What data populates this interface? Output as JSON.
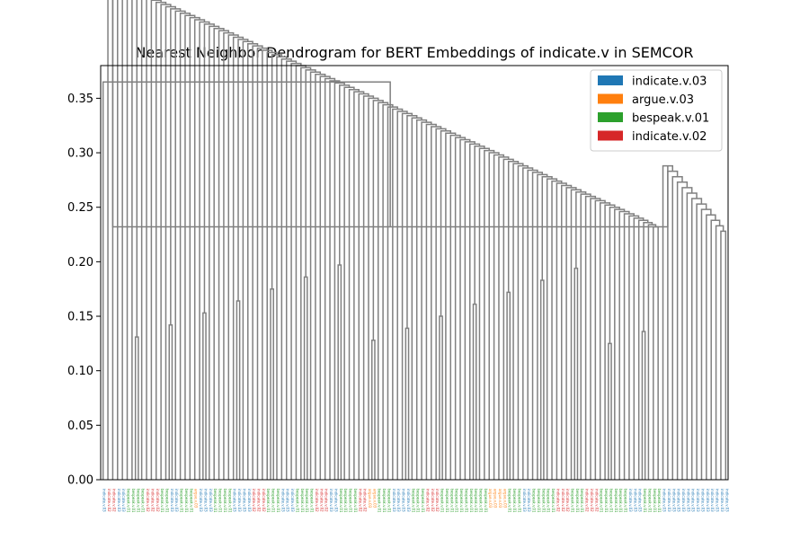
{
  "chart_data": {
    "type": "dendrogram",
    "title": "Nearest Neighbor Dendrogram for BERT Embeddings of indicate.v in SEMCOR",
    "xlabel": "",
    "ylabel": "",
    "ylim": [
      0,
      0.38
    ],
    "yticks": [
      0.0,
      0.05,
      0.1,
      0.15,
      0.2,
      0.25,
      0.3,
      0.35
    ],
    "ytick_labels": [
      "0.00",
      "0.05",
      "0.10",
      "0.15",
      "0.20",
      "0.25",
      "0.30",
      "0.35"
    ],
    "grid": false,
    "link_color": "#808080",
    "legend_position": "top-right",
    "legend": [
      {
        "label": "indicate.v.03",
        "color": "#1f77b4"
      },
      {
        "label": "argue.v.03",
        "color": "#ff7f0e"
      },
      {
        "label": "bespeak.v.01",
        "color": "#2ca02c"
      },
      {
        "label": "indicate.v.02",
        "color": "#d62728"
      }
    ],
    "merges": [
      {
        "left": 0,
        "right": 0,
        "height": 0.255
      },
      {
        "left": 0,
        "right": 1,
        "height": 0.365
      },
      {
        "left": 1,
        "right": 2,
        "height": 0.348
      },
      {
        "left": 2,
        "right": 3,
        "height": 0.332
      },
      {
        "left": 3,
        "right": 4,
        "height": 0.318
      },
      {
        "left": 4,
        "right": 5,
        "height": 0.313
      },
      {
        "left": 5,
        "right": 6,
        "height": 0.306
      },
      {
        "left": 6,
        "right": 7,
        "height": 0.3
      },
      {
        "left": 8,
        "right": 9,
        "height": 0.267
      },
      {
        "left": 10,
        "right": 11,
        "height": 0.265
      },
      {
        "left": 11,
        "right": 12,
        "height": 0.262
      },
      {
        "left": 13,
        "right": 14,
        "height": 0.247
      },
      {
        "left": 15,
        "right": 16,
        "height": 0.18
      },
      {
        "left": 17,
        "right": 18,
        "height": 0.227
      },
      {
        "left": 19,
        "right": 20,
        "height": 0.224
      },
      {
        "left": 21,
        "right": 22,
        "height": 0.199
      },
      {
        "left": 23,
        "right": 24,
        "height": 0.19
      },
      {
        "left": 25,
        "right": 26,
        "height": 0.169
      },
      {
        "left": 27,
        "right": 28,
        "height": 0.124
      },
      {
        "left": 29,
        "right": 30,
        "height": 0.22
      },
      {
        "left": 31,
        "right": 32,
        "height": 0.199
      },
      {
        "left": 33,
        "right": 34,
        "height": 0.192
      },
      {
        "left": 35,
        "right": 36,
        "height": 0.174
      },
      {
        "left": 37,
        "right": 38,
        "height": 0.24
      },
      {
        "left": 39,
        "right": 40,
        "height": 0.23
      },
      {
        "left": 41,
        "right": 42,
        "height": 0.199
      },
      {
        "left": 43,
        "right": 44,
        "height": 0.298
      },
      {
        "left": 45,
        "right": 46,
        "height": 0.296
      },
      {
        "left": 47,
        "right": 48,
        "height": 0.29
      },
      {
        "left": 49,
        "right": 50,
        "height": 0.287
      },
      {
        "left": 51,
        "right": 52,
        "height": 0.285
      },
      {
        "left": 53,
        "right": 54,
        "height": 0.283
      },
      {
        "left": 55,
        "right": 56,
        "height": 0.28
      },
      {
        "left": 57,
        "right": 58,
        "height": 0.274
      },
      {
        "left": 59,
        "right": 60,
        "height": 0.27
      },
      {
        "left": 61,
        "right": 62,
        "height": 0.266
      },
      {
        "left": 63,
        "right": 64,
        "height": 0.26
      },
      {
        "left": 65,
        "right": 66,
        "height": 0.256
      },
      {
        "left": 67,
        "right": 68,
        "height": 0.25
      },
      {
        "left": 69,
        "right": 70,
        "height": 0.246
      },
      {
        "left": 71,
        "right": 72,
        "height": 0.243
      },
      {
        "left": 73,
        "right": 74,
        "height": 0.24
      },
      {
        "left": 75,
        "right": 76,
        "height": 0.237
      },
      {
        "left": 77,
        "right": 78,
        "height": 0.234
      },
      {
        "left": 79,
        "right": 80,
        "height": 0.23
      },
      {
        "left": 81,
        "right": 82,
        "height": 0.225
      },
      {
        "left": 83,
        "right": 84,
        "height": 0.222
      },
      {
        "left": 85,
        "right": 86,
        "height": 0.218
      },
      {
        "left": 87,
        "right": 88,
        "height": 0.2
      },
      {
        "left": 89,
        "right": 90,
        "height": 0.198
      },
      {
        "left": 91,
        "right": 92,
        "height": 0.197
      },
      {
        "left": 93,
        "right": 94,
        "height": 0.195
      },
      {
        "left": 95,
        "right": 96,
        "height": 0.19
      },
      {
        "left": 97,
        "right": 98,
        "height": 0.182
      },
      {
        "left": 99,
        "right": 100,
        "height": 0.176
      },
      {
        "left": 101,
        "right": 102,
        "height": 0.171
      },
      {
        "left": 103,
        "right": 104,
        "height": 0.166
      },
      {
        "left": 105,
        "right": 106,
        "height": 0.163
      },
      {
        "left": 107,
        "right": 108,
        "height": 0.16
      },
      {
        "left": 109,
        "right": 110,
        "height": 0.15
      },
      {
        "left": 111,
        "right": 112,
        "height": 0.232
      },
      {
        "left": 113,
        "right": 114,
        "height": 0.228
      }
    ],
    "leaf_count": 130,
    "leaf_classes": [
      0,
      3,
      3,
      0,
      0,
      2,
      2,
      2,
      2,
      3,
      3,
      3,
      2,
      2,
      0,
      0,
      2,
      2,
      2,
      1,
      0,
      0,
      0,
      2,
      2,
      2,
      2,
      0,
      0,
      0,
      0,
      3,
      3,
      3,
      2,
      2,
      2,
      0,
      0,
      0,
      2,
      2,
      2,
      2,
      3,
      3,
      3,
      0,
      0,
      2,
      2,
      2,
      2,
      3,
      3,
      1,
      1,
      2,
      2,
      2,
      0,
      0,
      0,
      0,
      2,
      2,
      2,
      3,
      3,
      3,
      2,
      2,
      2,
      2,
      2,
      2,
      2,
      2,
      2,
      2,
      1,
      1,
      1,
      1,
      2,
      2,
      2,
      0,
      0,
      2,
      2,
      2,
      2,
      2,
      3,
      3,
      3,
      2,
      2,
      2,
      3,
      3,
      3,
      2,
      2,
      2,
      2,
      2,
      2,
      0,
      0,
      0,
      2,
      2,
      2,
      2,
      0,
      0,
      0,
      0,
      0,
      0,
      0,
      0,
      0,
      0,
      0,
      0,
      0,
      0
    ]
  }
}
